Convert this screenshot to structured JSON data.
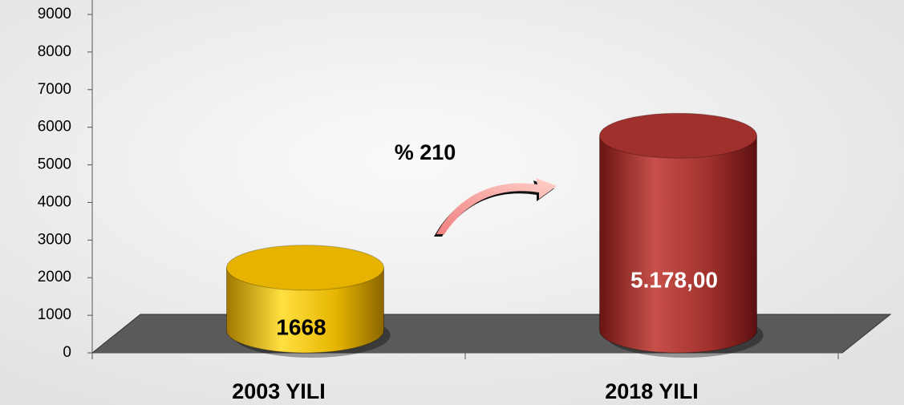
{
  "chart_data": {
    "type": "bar3d",
    "categories": [
      "2003 YILI",
      "2018 YILI"
    ],
    "values": [
      1668,
      5178
    ],
    "value_labels": [
      "1668",
      "5.178,00"
    ],
    "colors": [
      "#e6b400",
      "#a0302c"
    ],
    "annotation": "% 210",
    "ylim": [
      0,
      9000
    ],
    "yticks": [
      0,
      1000,
      2000,
      3000,
      4000,
      5000,
      6000,
      7000,
      8000,
      9000
    ]
  }
}
